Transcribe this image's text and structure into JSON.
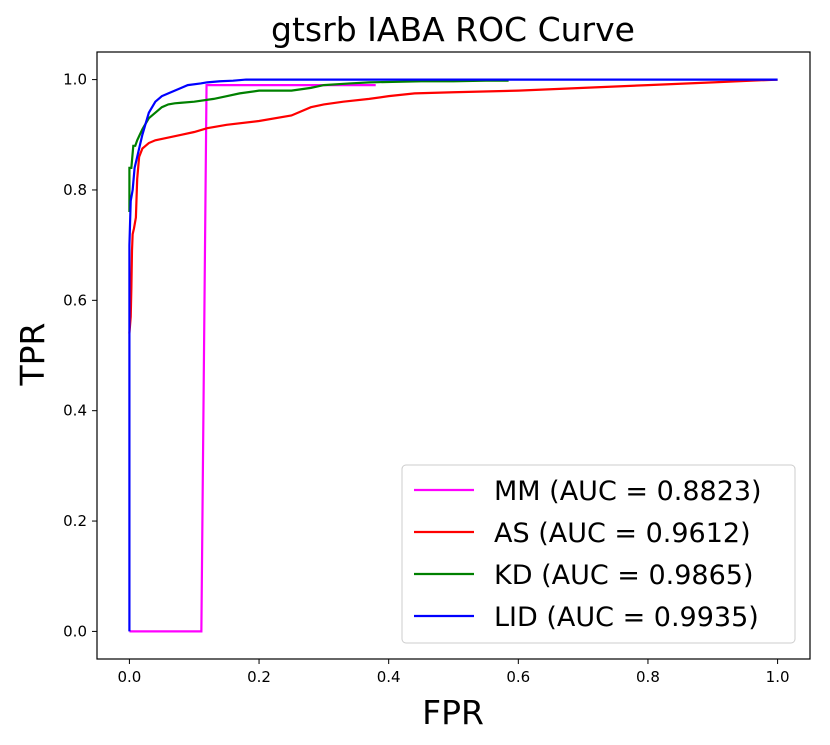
{
  "chart_data": {
    "type": "line",
    "title": "gtsrb IABA ROC Curve",
    "xlabel": "FPR",
    "ylabel": "TPR",
    "xlim": [
      -0.05,
      1.05
    ],
    "ylim": [
      -0.05,
      1.05
    ],
    "xticks": [
      0.0,
      0.2,
      0.4,
      0.6,
      0.8,
      1.0
    ],
    "yticks": [
      0.0,
      0.2,
      0.4,
      0.6,
      0.8,
      1.0
    ],
    "xtick_labels": [
      "0.0",
      "0.2",
      "0.4",
      "0.6",
      "0.8",
      "1.0"
    ],
    "ytick_labels": [
      "0.0",
      "0.2",
      "0.4",
      "0.6",
      "0.8",
      "1.0"
    ],
    "grid": false,
    "legend_position": "lower-right",
    "series": [
      {
        "name": "MM",
        "label": "MM (AUC = 0.8823)",
        "color": "#ff00ff",
        "x": [
          0.0,
          0.0,
          0.111,
          0.119,
          0.22,
          0.31,
          0.35,
          0.38
        ],
        "y": [
          0.0,
          0.0,
          0.0,
          0.99,
          0.99,
          0.99,
          0.99,
          0.99
        ]
      },
      {
        "name": "AS",
        "label": "AS (AUC = 0.9612)",
        "color": "#ff0000",
        "x": [
          0.0,
          0.002,
          0.003,
          0.004,
          0.005,
          0.007,
          0.01,
          0.012,
          0.015,
          0.02,
          0.03,
          0.04,
          0.06,
          0.08,
          0.1,
          0.12,
          0.15,
          0.2,
          0.25,
          0.28,
          0.3,
          0.33,
          0.37,
          0.4,
          0.44,
          0.5,
          0.6,
          0.7,
          0.8,
          0.9,
          1.0
        ],
        "y": [
          0.54,
          0.57,
          0.62,
          0.69,
          0.72,
          0.73,
          0.75,
          0.82,
          0.86,
          0.875,
          0.885,
          0.89,
          0.895,
          0.9,
          0.905,
          0.912,
          0.918,
          0.925,
          0.935,
          0.95,
          0.955,
          0.96,
          0.965,
          0.97,
          0.975,
          0.977,
          0.98,
          0.985,
          0.99,
          0.995,
          1.0
        ]
      },
      {
        "name": "KD",
        "label": "KD (AUC = 0.9865)",
        "color": "#008000",
        "x": [
          0.0,
          0.0,
          0.003,
          0.006,
          0.009,
          0.012,
          0.016,
          0.02,
          0.025,
          0.03,
          0.04,
          0.05,
          0.06,
          0.07,
          0.08,
          0.1,
          0.13,
          0.15,
          0.17,
          0.2,
          0.25,
          0.28,
          0.3,
          0.34,
          0.37,
          0.45,
          0.5,
          0.55,
          0.585
        ],
        "y": [
          0.76,
          0.84,
          0.84,
          0.88,
          0.88,
          0.89,
          0.9,
          0.91,
          0.92,
          0.93,
          0.94,
          0.95,
          0.955,
          0.957,
          0.958,
          0.96,
          0.965,
          0.97,
          0.975,
          0.98,
          0.98,
          0.985,
          0.99,
          0.993,
          0.995,
          0.997,
          0.997,
          0.998,
          0.998
        ]
      },
      {
        "name": "LID",
        "label": "LID (AUC = 0.9935)",
        "color": "#0000ff",
        "x": [
          0.0,
          0.0,
          0.002,
          0.005,
          0.008,
          0.012,
          0.016,
          0.02,
          0.025,
          0.03,
          0.035,
          0.04,
          0.05,
          0.06,
          0.07,
          0.08,
          0.09,
          0.11,
          0.12,
          0.14,
          0.16,
          0.18,
          0.25,
          0.4,
          0.6,
          0.8,
          1.0
        ],
        "y": [
          0.0,
          0.7,
          0.78,
          0.8,
          0.84,
          0.86,
          0.88,
          0.9,
          0.92,
          0.94,
          0.95,
          0.96,
          0.97,
          0.975,
          0.98,
          0.985,
          0.99,
          0.993,
          0.995,
          0.997,
          0.998,
          1.0,
          1.0,
          1.0,
          1.0,
          1.0,
          1.0
        ]
      }
    ]
  }
}
